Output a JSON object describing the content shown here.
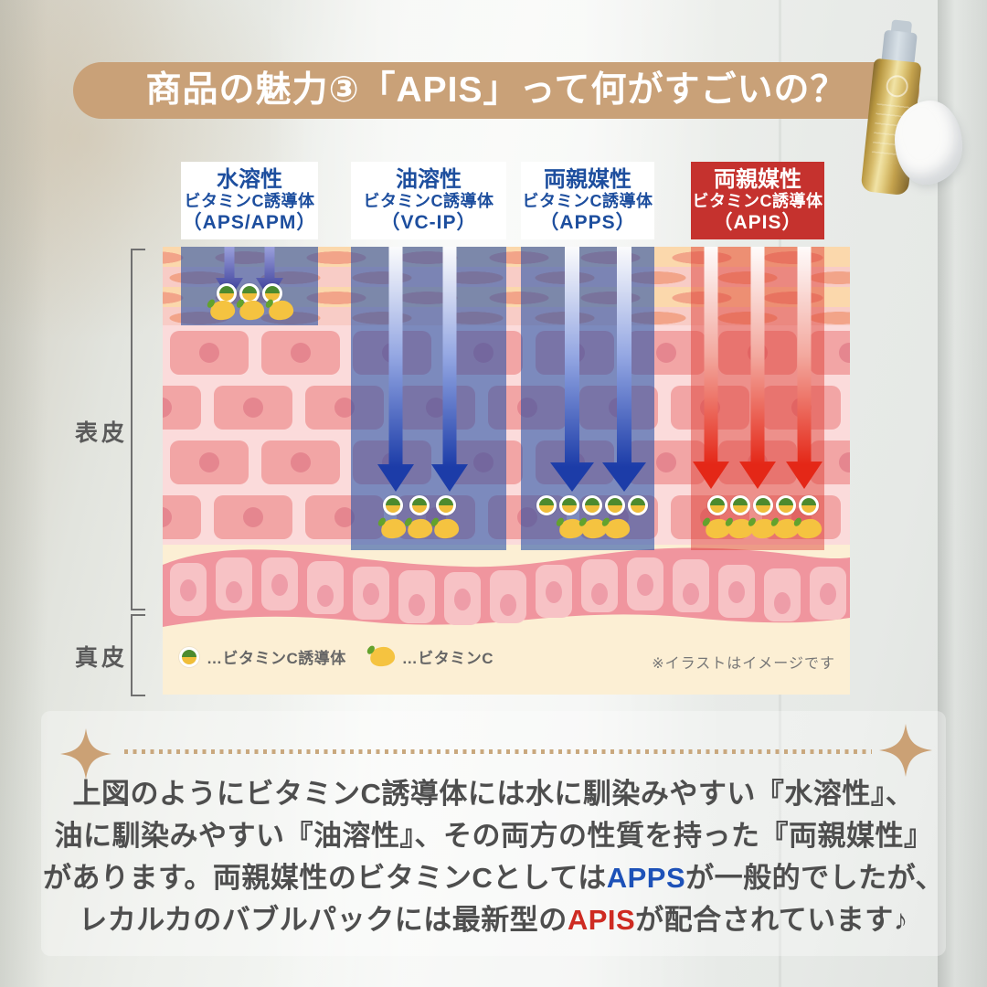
{
  "header": {
    "title": "商品の魅力③「APIS」って何がすごいの？"
  },
  "column_headers": [
    {
      "type": "水溶性",
      "name": "ビタミンC誘導体",
      "code": "（APS/APM）",
      "highlighted": false
    },
    {
      "type": "油溶性",
      "name": "ビタミンC誘導体",
      "code": "（VC-IP）",
      "highlighted": false
    },
    {
      "type": "両親媒性",
      "name": "ビタミンC誘導体",
      "code": "（APPS）",
      "highlighted": false
    },
    {
      "type": "両親媒性",
      "name": "ビタミンC誘導体",
      "code": "（APIS）",
      "highlighted": true
    }
  ],
  "skin": {
    "epidermis": "表皮",
    "dermis": "真皮"
  },
  "legend": {
    "derivative_label": "…ビタミンC誘導体",
    "vitamin_label": "…ビタミンC"
  },
  "note": "※イラストはイメージです",
  "diagram": {
    "columns": [
      {
        "code": "APS/APM",
        "arrow_color": "indigo",
        "arrows": 2,
        "reach_deep": false,
        "derivative_dots": 3,
        "lemons": 3
      },
      {
        "code": "VC-IP",
        "arrow_color": "blue",
        "arrows": 2,
        "reach_deep": true,
        "derivative_dots": 3,
        "lemons": 3
      },
      {
        "code": "APPS",
        "arrow_color": "blue",
        "arrows": 2,
        "reach_deep": true,
        "derivative_dots": 5,
        "lemons": 3
      },
      {
        "code": "APIS",
        "arrow_color": "red",
        "arrows": 3,
        "reach_deep": true,
        "derivative_dots": 5,
        "lemons": 5
      }
    ]
  },
  "paragraph": {
    "line1": "上図のようにビタミンC誘導体には水に馴染みやすい『水溶性』、",
    "line2": "油に馴染みやすい『油溶性』、その両方の性質を持った『両親媒性』",
    "line3_pre": "があります。両親媒性のビタミンCとしては",
    "line3_highlight": "APPS",
    "line3_post": "が一般的でしたが、",
    "line4_pre": "レカルカのバブルパックには最新型の",
    "line4_highlight": "APIS",
    "line4_post": "が配合されています♪"
  },
  "colors": {
    "accent_tan": "#C9A178",
    "highlight_red": "#C5322E",
    "header_text_blue": "#1D4E9E",
    "apps_blue": "#1D51B8",
    "apis_red": "#CE2B22",
    "dot_green": "#4C8A2E",
    "dot_yellow": "#F0BE3A",
    "lemon_yellow": "#F5C340"
  }
}
